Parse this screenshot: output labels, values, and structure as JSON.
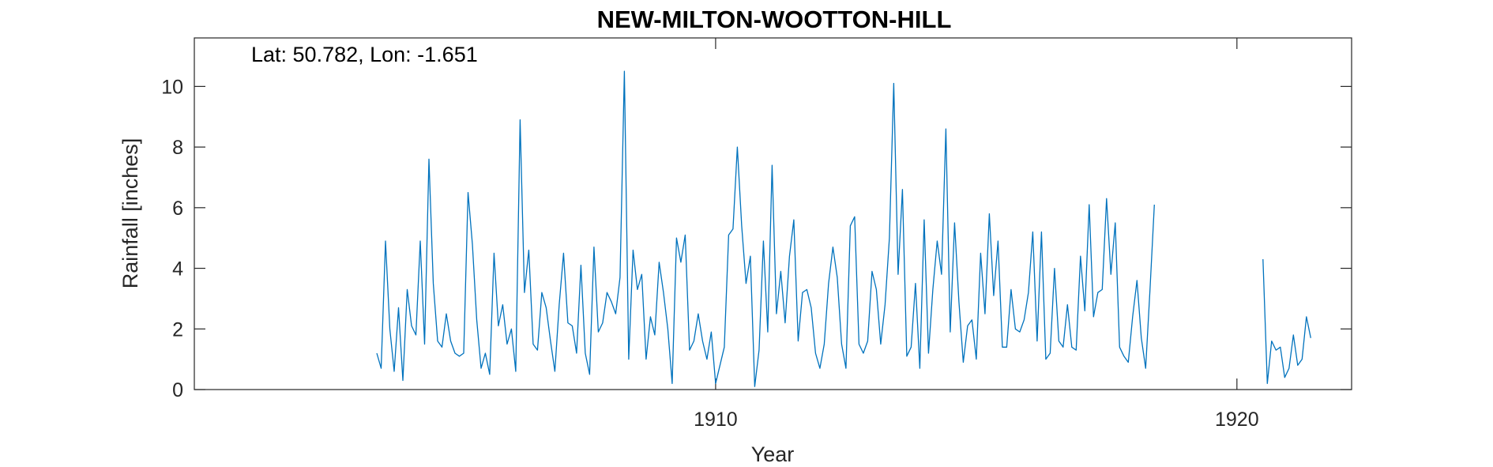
{
  "chart_data": {
    "type": "line",
    "title": "NEW-MILTON-WOOTTON-HILL",
    "annotation": "Lat: 50.782, Lon: -1.651",
    "xlabel": "Year",
    "ylabel": "Rainfall [inches]",
    "xlim": [
      1900.0,
      1922.2
    ],
    "ylim": [
      0,
      11.6
    ],
    "xticks": [
      1910,
      1920
    ],
    "xtick_labels": [
      "1910",
      "1920"
    ],
    "yticks": [
      0,
      2,
      4,
      6,
      8,
      10
    ],
    "ytick_labels": [
      "0",
      "2",
      "4",
      "6",
      "8",
      "10"
    ],
    "grid": false,
    "line_color": "#0072bd",
    "series": [
      {
        "name": "Rainfall",
        "segments": [
          {
            "start_year": 1903.5,
            "step": 0.0833333,
            "values": [
              1.2,
              0.7,
              4.9,
              2.0,
              0.6,
              2.7,
              0.3,
              3.3,
              2.1,
              1.8,
              4.9,
              1.5,
              7.6,
              3.5,
              1.6,
              1.4,
              2.5,
              1.6,
              1.2,
              1.1,
              1.2,
              6.5,
              4.8,
              2.3,
              0.7,
              1.2,
              0.5,
              4.5,
              2.1,
              2.8,
              1.5,
              2.0,
              0.6,
              8.9,
              3.2,
              4.6,
              1.5,
              1.3,
              3.2,
              2.7,
              1.6,
              0.6,
              2.8,
              4.5,
              2.2,
              2.1,
              1.2,
              4.1,
              1.2,
              0.5,
              4.7,
              1.9,
              2.2,
              3.2,
              2.9,
              2.5,
              3.7,
              10.5,
              1.0,
              4.6,
              3.3,
              3.8,
              1.0,
              2.4,
              1.8,
              4.2,
              3.2,
              2.0,
              0.2,
              5.0,
              4.2,
              5.1,
              1.3,
              1.6,
              2.5,
              1.6,
              1.0,
              1.9,
              0.2,
              0.8,
              1.4,
              5.1,
              5.3,
              8.0,
              5.4,
              3.5,
              4.4,
              0.1,
              1.3,
              4.9,
              1.9,
              7.4,
              2.5,
              3.9,
              2.2,
              4.4,
              5.6,
              1.6,
              3.2,
              3.3,
              2.7,
              1.2,
              0.7,
              1.5,
              3.5,
              4.7,
              3.7,
              1.5,
              0.7,
              5.4,
              5.7,
              1.5,
              1.2,
              1.6,
              3.9,
              3.3,
              1.5,
              2.8,
              5.0,
              10.1,
              3.8,
              6.6,
              1.1,
              1.4,
              3.5,
              0.7,
              5.6,
              1.2,
              3.3,
              4.9,
              3.8,
              8.6,
              1.9,
              5.5,
              2.9,
              0.9,
              2.1,
              2.3,
              1.0,
              4.5,
              2.5,
              5.8,
              3.1,
              4.9,
              1.4,
              1.4,
              3.3,
              2.0,
              1.9,
              2.3,
              3.2,
              5.2,
              1.6,
              5.2,
              1.0,
              1.2,
              4.0,
              1.6,
              1.4,
              2.8,
              1.4,
              1.3,
              4.4,
              2.6,
              6.1,
              2.4,
              3.2,
              3.3,
              6.3,
              3.8,
              5.5,
              1.4,
              1.1,
              0.9,
              2.4,
              3.6,
              1.7,
              0.7,
              3.3,
              6.1
            ]
          },
          {
            "start_year": 1920.5,
            "step": 0.0833333,
            "values": [
              4.3,
              0.2,
              1.6,
              1.3,
              1.4,
              0.4,
              0.7,
              1.8,
              0.8,
              1.0,
              2.4,
              1.7
            ]
          }
        ]
      }
    ]
  }
}
